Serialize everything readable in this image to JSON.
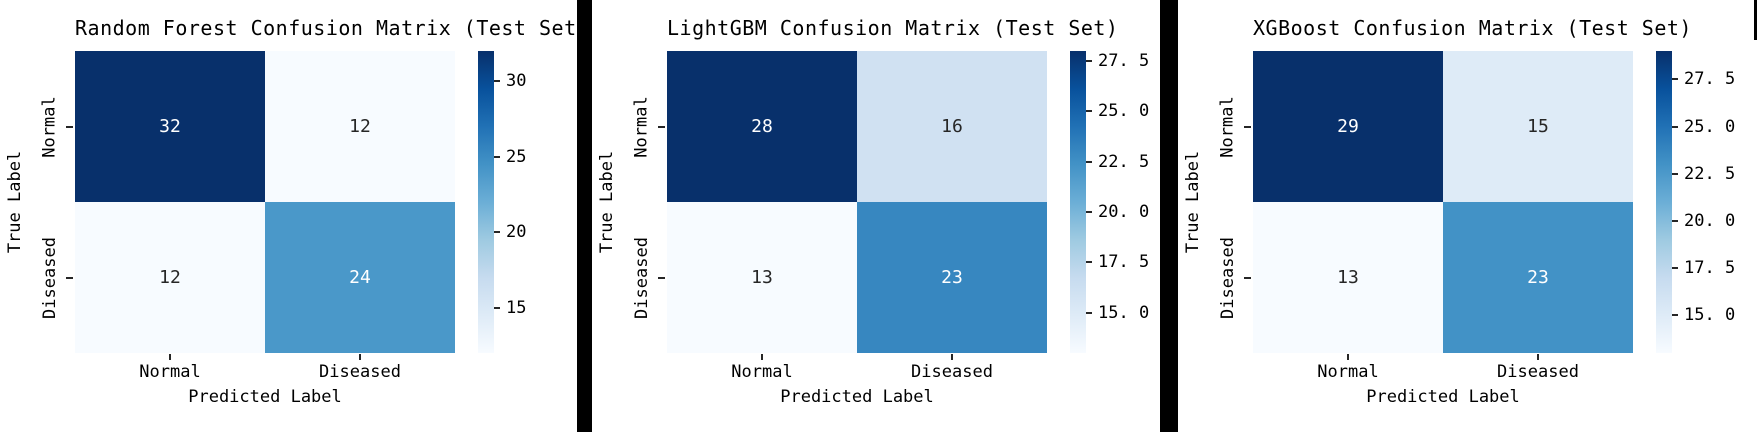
{
  "panels": [
    {
      "title": "Random Forest Confusion Matrix (Test Set)",
      "xlabel": "Predicted Label",
      "ylabel": "True Label",
      "x_tick_labels": [
        "Normal",
        "Diseased"
      ],
      "y_tick_labels": [
        "Normal",
        "Diseased"
      ],
      "cells": [
        {
          "value": "32",
          "bg": "#08306b",
          "fg": "#ffffff"
        },
        {
          "value": "12",
          "bg": "#f7fbff",
          "fg": "#262626"
        },
        {
          "value": "12",
          "bg": "#f7fbff",
          "fg": "#262626"
        },
        {
          "value": "24",
          "bg": "#4a98c9",
          "fg": "#ffffff"
        }
      ],
      "colorbar": {
        "ticks": [
          {
            "label": "30",
            "top": "10%"
          },
          {
            "label": "25",
            "top": "35%"
          },
          {
            "label": "20",
            "top": "60%"
          },
          {
            "label": "15",
            "top": "85%"
          }
        ]
      }
    },
    {
      "title": "LightGBM Confusion Matrix (Test Set)",
      "xlabel": "Predicted Label",
      "ylabel": "True Label",
      "x_tick_labels": [
        "Normal",
        "Diseased"
      ],
      "y_tick_labels": [
        "Normal",
        "Diseased"
      ],
      "cells": [
        {
          "value": "28",
          "bg": "#08306b",
          "fg": "#ffffff"
        },
        {
          "value": "16",
          "bg": "#d0e1f2",
          "fg": "#262626"
        },
        {
          "value": "13",
          "bg": "#f7fbff",
          "fg": "#262626"
        },
        {
          "value": "23",
          "bg": "#3787c0",
          "fg": "#ffffff"
        }
      ],
      "colorbar": {
        "ticks": [
          {
            "label": "27. 5",
            "top": "3.33%"
          },
          {
            "label": "25. 0",
            "top": "20%"
          },
          {
            "label": "22. 5",
            "top": "36.67%"
          },
          {
            "label": "20. 0",
            "top": "53.33%"
          },
          {
            "label": "17. 5",
            "top": "70%"
          },
          {
            "label": "15. 0",
            "top": "86.67%"
          }
        ]
      }
    },
    {
      "title": "XGBoost Confusion Matrix (Test Set)",
      "xlabel": "Predicted Label",
      "ylabel": "True Label",
      "x_tick_labels": [
        "Normal",
        "Diseased"
      ],
      "y_tick_labels": [
        "Normal",
        "Diseased"
      ],
      "cells": [
        {
          "value": "29",
          "bg": "#08306b",
          "fg": "#ffffff"
        },
        {
          "value": "15",
          "bg": "#deebf7",
          "fg": "#262626"
        },
        {
          "value": "13",
          "bg": "#f7fbff",
          "fg": "#262626"
        },
        {
          "value": "23",
          "bg": "#4292c6",
          "fg": "#ffffff"
        }
      ],
      "colorbar": {
        "ticks": [
          {
            "label": "27. 5",
            "top": "9.38%"
          },
          {
            "label": "25. 0",
            "top": "25%"
          },
          {
            "label": "22. 5",
            "top": "40.63%"
          },
          {
            "label": "20. 0",
            "top": "56.25%"
          },
          {
            "label": "17. 5",
            "top": "71.88%"
          },
          {
            "label": "15. 0",
            "top": "87.5%"
          }
        ]
      }
    }
  ],
  "chart_data": [
    {
      "type": "heatmap",
      "title": "Random Forest Confusion Matrix (Test Set)",
      "xlabel": "Predicted Label",
      "ylabel": "True Label",
      "x_categories": [
        "Normal",
        "Diseased"
      ],
      "y_categories": [
        "Normal",
        "Diseased"
      ],
      "matrix": [
        [
          32,
          12
        ],
        [
          12,
          24
        ]
      ],
      "colormap": "Blues",
      "vmin": 12,
      "vmax": 32,
      "colorbar_ticks": [
        30,
        25,
        20,
        15
      ],
      "annotations_shown": true,
      "legend_position": "right-colorbar",
      "grid": false
    },
    {
      "type": "heatmap",
      "title": "LightGBM Confusion Matrix (Test Set)",
      "xlabel": "Predicted Label",
      "ylabel": "True Label",
      "x_categories": [
        "Normal",
        "Diseased"
      ],
      "y_categories": [
        "Normal",
        "Diseased"
      ],
      "matrix": [
        [
          28,
          16
        ],
        [
          13,
          23
        ]
      ],
      "colormap": "Blues",
      "vmin": 13,
      "vmax": 28,
      "colorbar_ticks": [
        27.5,
        25.0,
        22.5,
        20.0,
        17.5,
        15.0
      ],
      "annotations_shown": true,
      "legend_position": "right-colorbar",
      "grid": false
    },
    {
      "type": "heatmap",
      "title": "XGBoost Confusion Matrix (Test Set)",
      "xlabel": "Predicted Label",
      "ylabel": "True Label",
      "x_categories": [
        "Normal",
        "Diseased"
      ],
      "y_categories": [
        "Normal",
        "Diseased"
      ],
      "matrix": [
        [
          29,
          15
        ],
        [
          13,
          23
        ]
      ],
      "colormap": "Blues",
      "vmin": 13,
      "vmax": 29,
      "colorbar_ticks": [
        27.5,
        25.0,
        22.5,
        20.0,
        17.5,
        15.0
      ],
      "annotations_shown": true,
      "legend_position": "right-colorbar",
      "grid": false
    }
  ],
  "colors": {
    "divider": "#000000",
    "background": "#ffffff",
    "cmap_max": "#08306b",
    "cmap_min": "#f7fbff",
    "tick_mark": "#262626"
  }
}
